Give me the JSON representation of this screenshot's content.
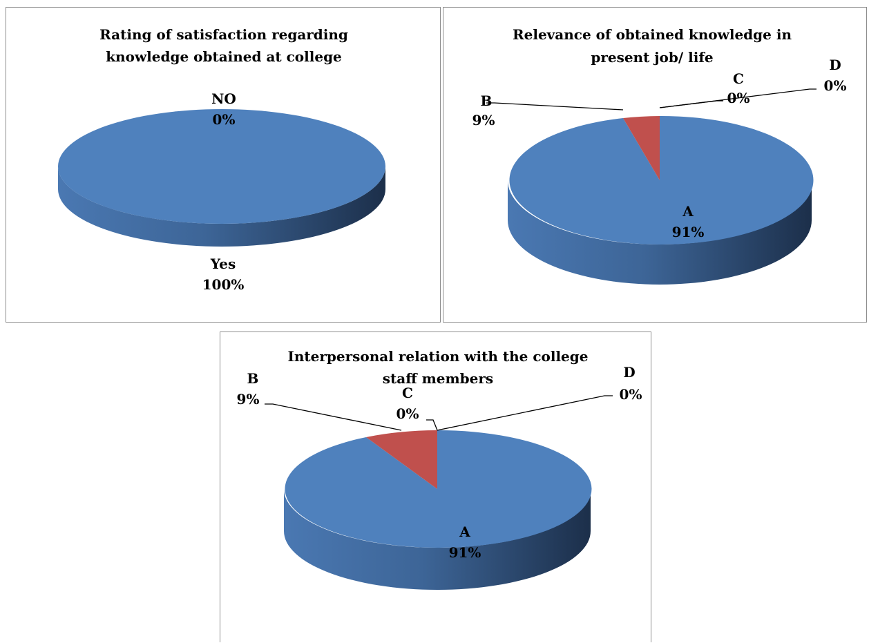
{
  "colors": {
    "blue": "#4f81bd",
    "red": "#c0504d"
  },
  "chart_data": [
    {
      "type": "pie",
      "title": "Rating of satisfaction regarding knowledge obtained at college",
      "title_lines": [
        "Rating of satisfaction regarding",
        "knowledge obtained at college"
      ],
      "three_d": true,
      "labels": [
        "Yes",
        "NO"
      ],
      "values": [
        100,
        0
      ],
      "value_labels": [
        "100%",
        "0%"
      ]
    },
    {
      "type": "pie",
      "title": "Relevance of obtained knowledge in present job/ life",
      "title_lines": [
        "Relevance of obtained knowledge in",
        "present job/ life"
      ],
      "three_d": true,
      "labels": [
        "A",
        "B",
        "C",
        "D"
      ],
      "values": [
        91,
        9,
        0,
        0
      ],
      "value_labels": [
        "91%",
        "9%",
        "0%",
        "0%"
      ]
    },
    {
      "type": "pie",
      "title": "Interpersonal relation with the college staff members",
      "title_lines": [
        "Interpersonal relation with the college",
        "staff members"
      ],
      "three_d": true,
      "labels": [
        "A",
        "B",
        "C",
        "D"
      ],
      "values": [
        91,
        9,
        0,
        0
      ],
      "value_labels": [
        "91%",
        "9%",
        "0%",
        "0%"
      ]
    }
  ]
}
